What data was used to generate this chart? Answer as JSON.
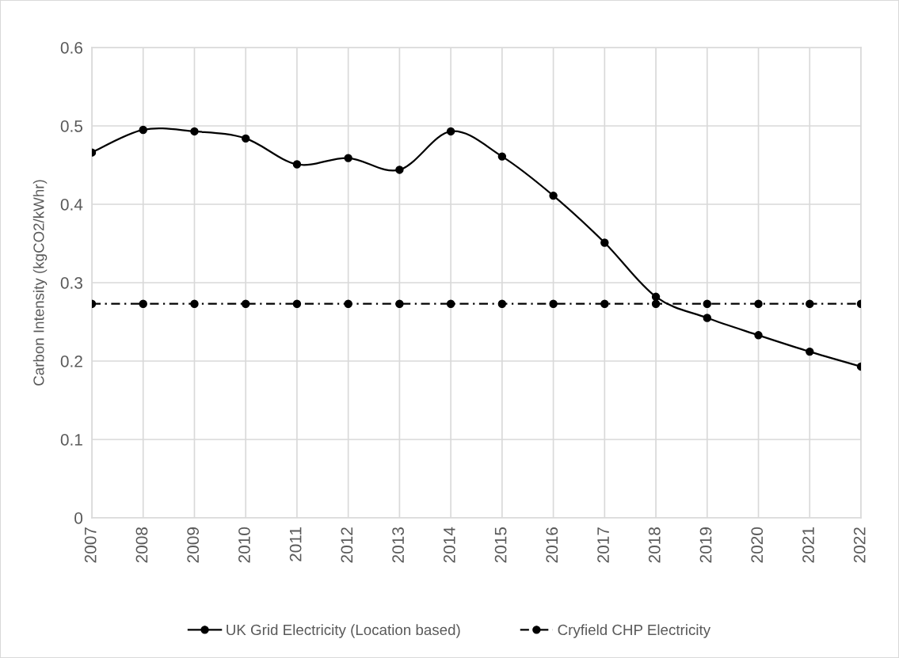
{
  "chart_data": {
    "type": "line",
    "ylabel": "Carbon Intensity (kgCO2/kWhr)",
    "categories": [
      "2007",
      "2008",
      "2009",
      "2010",
      "2011",
      "2012",
      "2013",
      "2014",
      "2015",
      "2016",
      "2017",
      "2018",
      "2019",
      "2020",
      "2021",
      "2022"
    ],
    "series": [
      {
        "name": "UK Grid Electricity (Location based)",
        "color": "#000000",
        "line_style": "solid",
        "values": [
          0.466,
          0.495,
          0.493,
          0.484,
          0.451,
          0.459,
          0.444,
          0.493,
          0.461,
          0.411,
          0.351,
          0.282,
          0.255,
          0.233,
          0.212,
          0.193
        ]
      },
      {
        "name": "Cryfield CHP Electricity",
        "color": "#000000",
        "line_style": "dashdot",
        "values": [
          0.273,
          0.273,
          0.273,
          0.273,
          0.273,
          0.273,
          0.273,
          0.273,
          0.273,
          0.273,
          0.273,
          0.273,
          0.273,
          0.273,
          0.273,
          0.273
        ]
      }
    ],
    "ylim": [
      0,
      0.6
    ],
    "yticks": [
      0,
      0.1,
      0.2,
      0.3,
      0.4,
      0.5,
      0.6
    ],
    "grid": true,
    "legend": "bottom",
    "marker": "circle"
  }
}
